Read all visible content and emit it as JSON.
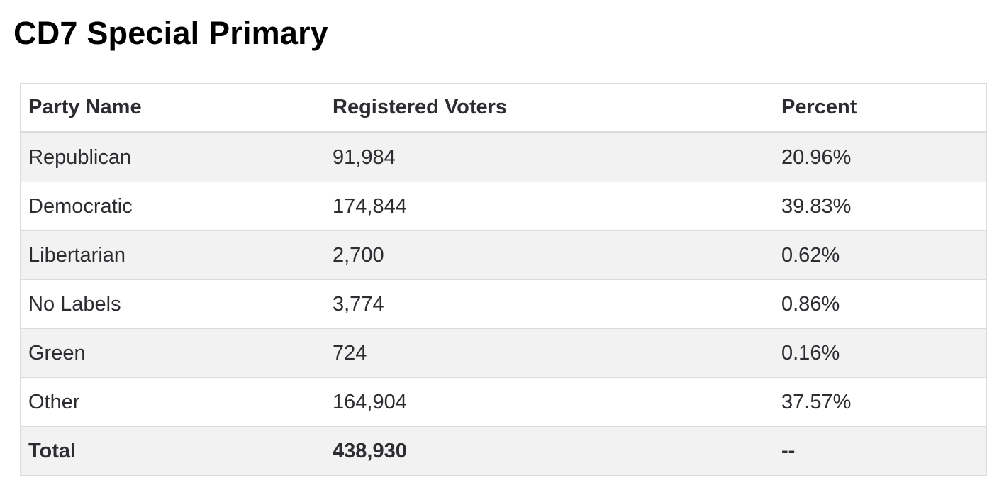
{
  "title": "CD7 Special Primary",
  "table": {
    "headers": [
      "Party Name",
      "Registered Voters",
      "Percent"
    ],
    "rows": [
      {
        "party": "Republican",
        "voters": "91,984",
        "percent": "20.96%"
      },
      {
        "party": "Democratic",
        "voters": "174,844",
        "percent": "39.83%"
      },
      {
        "party": "Libertarian",
        "voters": "2,700",
        "percent": "0.62%"
      },
      {
        "party": "No Labels",
        "voters": "3,774",
        "percent": "0.86%"
      },
      {
        "party": "Green",
        "voters": "724",
        "percent": "0.16%"
      },
      {
        "party": "Other",
        "voters": "164,904",
        "percent": "37.57%"
      }
    ],
    "total": {
      "party": "Total",
      "voters": "438,930",
      "percent": "--"
    }
  }
}
